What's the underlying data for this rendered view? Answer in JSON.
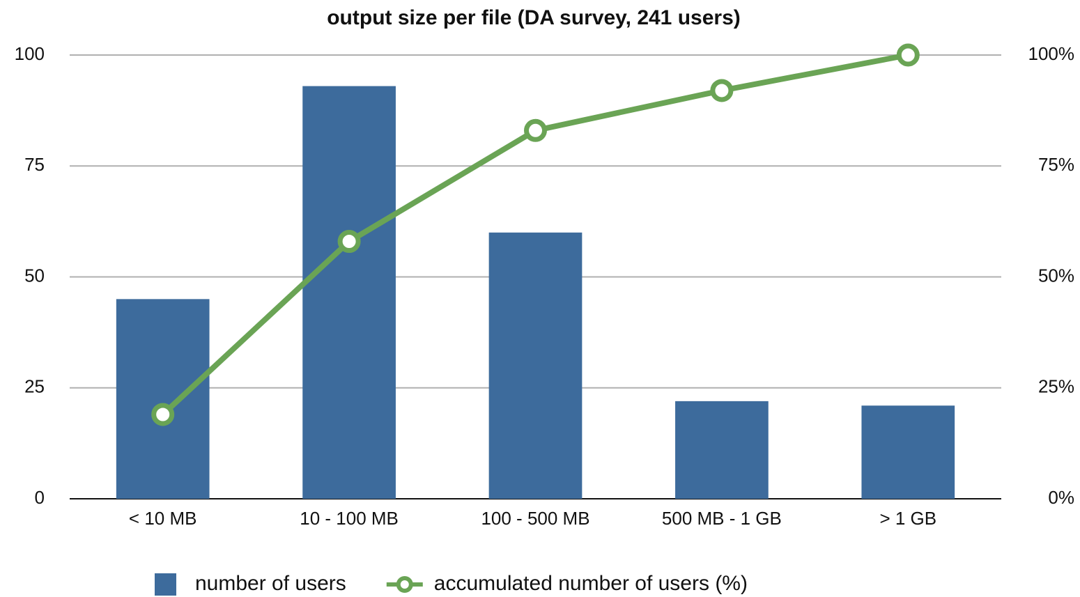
{
  "chart_data": {
    "type": "bar",
    "title": "output size per file (DA survey, 241 users)",
    "categories": [
      "< 10 MB",
      "10 - 100 MB",
      "100 - 500 MB",
      "500 MB - 1 GB",
      "> 1 GB"
    ],
    "series": [
      {
        "name": "number of users",
        "color": "#3d6b9c",
        "values": [
          45,
          93,
          60,
          22,
          21
        ]
      },
      {
        "name": "accumulated number of users (%)",
        "color": "#6aa455",
        "type": "line",
        "axis": "y2",
        "values": [
          19,
          58,
          83,
          92,
          100
        ]
      }
    ],
    "ylim": [
      0,
      100
    ],
    "yticks": [
      0,
      25,
      50,
      75,
      100
    ],
    "y2lim": [
      0,
      100
    ],
    "y2ticks": [
      {
        "value": 0,
        "label": "0%"
      },
      {
        "value": 25,
        "label": "25%"
      },
      {
        "value": 50,
        "label": "50%"
      },
      {
        "value": 75,
        "label": "75%"
      },
      {
        "value": 100,
        "label": "100%"
      }
    ],
    "grid": true,
    "legend": "bottom"
  }
}
